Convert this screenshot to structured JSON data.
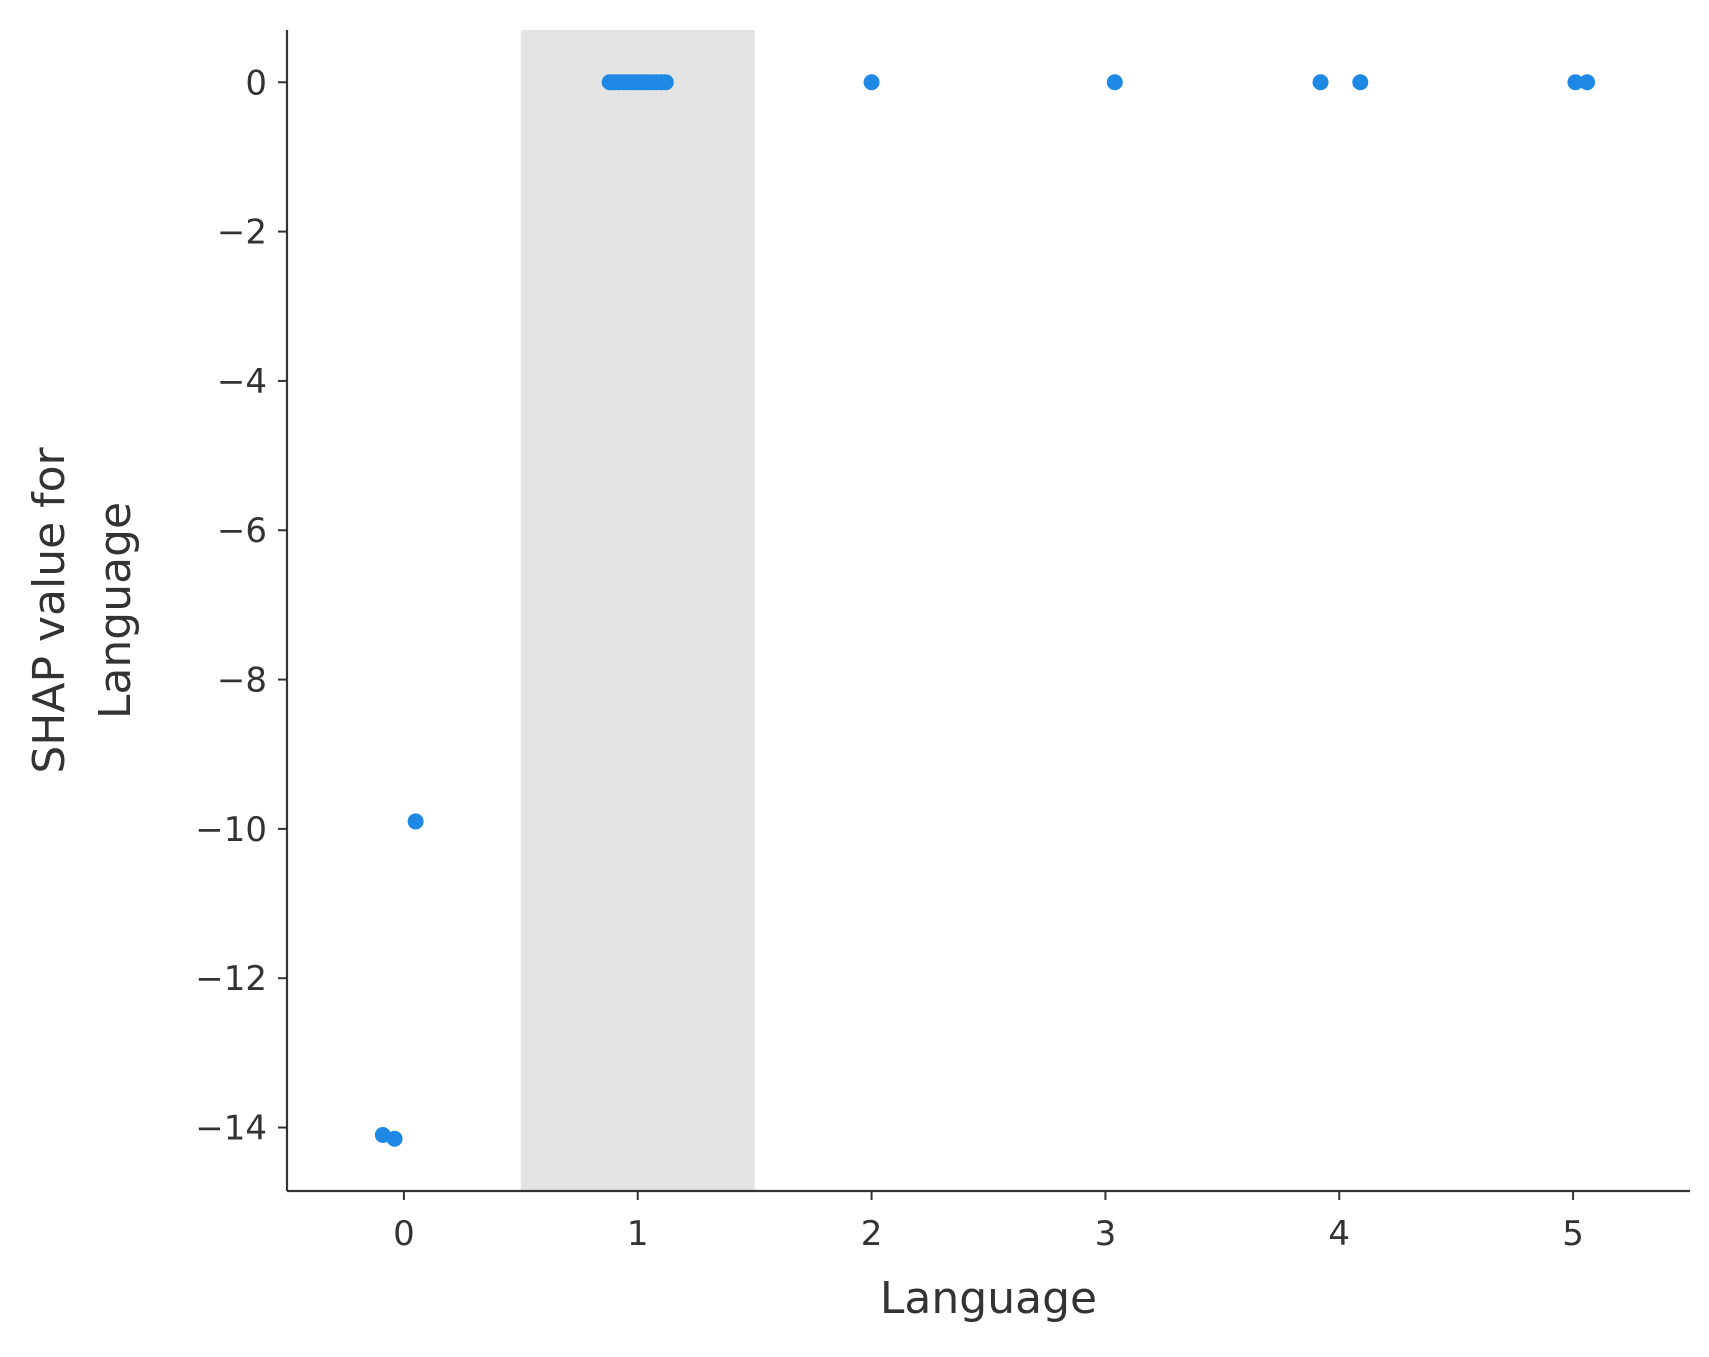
{
  "chart_data": {
    "type": "scatter",
    "title": "",
    "xlabel": "Language",
    "ylabel_lines": [
      "SHAP value for",
      "Language"
    ],
    "xlim": [
      -0.5,
      5.5
    ],
    "ylim": [
      -14.85,
      0.7
    ],
    "xticks": [
      0,
      1,
      2,
      3,
      4,
      5
    ],
    "xtick_labels": [
      "0",
      "1",
      "2",
      "3",
      "4",
      "5"
    ],
    "yticks": [
      0,
      -2,
      -4,
      -6,
      -8,
      -10,
      -12,
      -14
    ],
    "ytick_labels": [
      "0",
      "−2",
      "−4",
      "−6",
      "−8",
      "−10",
      "−12",
      "−14"
    ],
    "grid": false,
    "highlight_band": {
      "x_from": 0.5,
      "x_to": 1.5,
      "color": "#e4e4e4"
    },
    "point_color": "#1e88e5",
    "points": [
      {
        "x": -0.09,
        "y": -14.1
      },
      {
        "x": -0.04,
        "y": -14.15
      },
      {
        "x": 0.05,
        "y": -9.9
      },
      {
        "x": 0.88,
        "y": 0
      },
      {
        "x": 0.9,
        "y": 0
      },
      {
        "x": 0.92,
        "y": 0
      },
      {
        "x": 0.94,
        "y": 0
      },
      {
        "x": 0.96,
        "y": 0
      },
      {
        "x": 0.98,
        "y": 0
      },
      {
        "x": 1.0,
        "y": 0
      },
      {
        "x": 1.02,
        "y": 0
      },
      {
        "x": 1.04,
        "y": 0
      },
      {
        "x": 1.06,
        "y": 0
      },
      {
        "x": 1.08,
        "y": 0
      },
      {
        "x": 1.1,
        "y": 0
      },
      {
        "x": 1.12,
        "y": 0
      },
      {
        "x": 2.0,
        "y": 0
      },
      {
        "x": 3.04,
        "y": 0
      },
      {
        "x": 3.92,
        "y": 0
      },
      {
        "x": 4.09,
        "y": 0
      },
      {
        "x": 5.01,
        "y": 0
      },
      {
        "x": 5.06,
        "y": 0
      }
    ]
  }
}
